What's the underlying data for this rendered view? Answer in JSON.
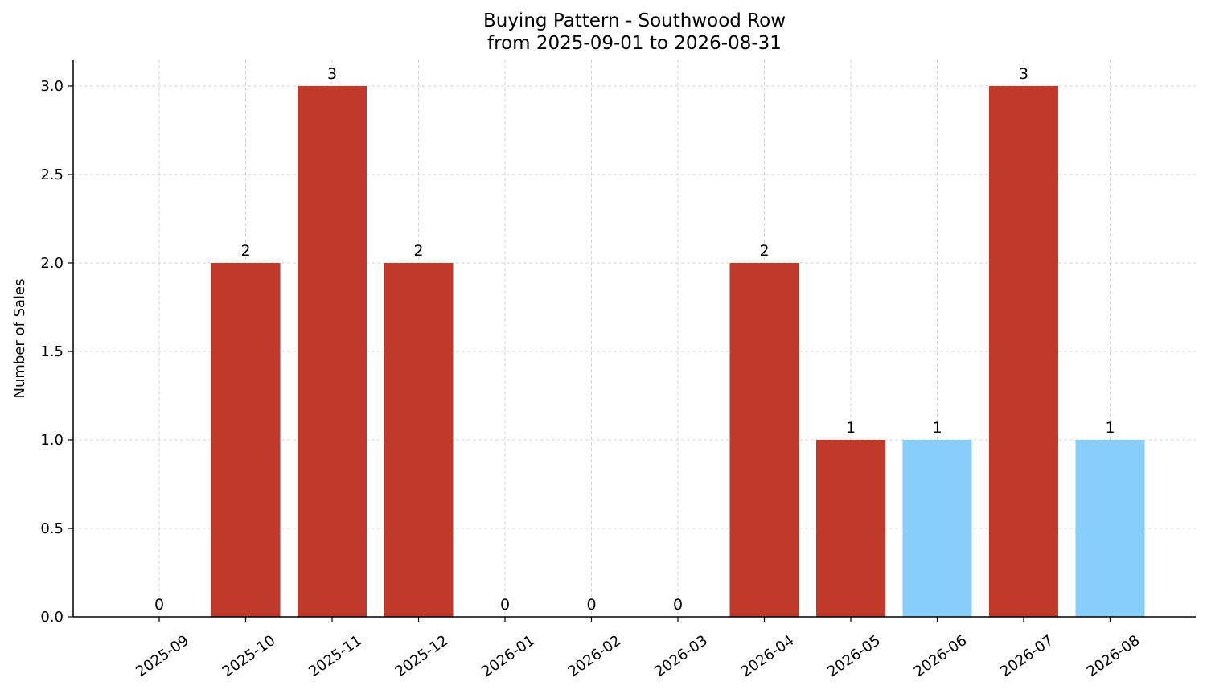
{
  "chart_data": {
    "type": "bar",
    "title": "Buying Pattern - Southwood Row",
    "subtitle": "from 2025-09-01 to 2026-08-31",
    "xlabel": "",
    "ylabel": "Number of Sales",
    "categories": [
      "2025-09",
      "2025-10",
      "2025-11",
      "2025-12",
      "2026-01",
      "2026-02",
      "2026-03",
      "2026-04",
      "2026-05",
      "2026-06",
      "2026-07",
      "2026-08"
    ],
    "values": [
      0,
      2,
      3,
      2,
      0,
      0,
      0,
      2,
      1,
      1,
      3,
      1
    ],
    "bar_colors": [
      "#c0392b",
      "#c0392b",
      "#c0392b",
      "#c0392b",
      "#c0392b",
      "#c0392b",
      "#c0392b",
      "#c0392b",
      "#c0392b",
      "#87cefa",
      "#c0392b",
      "#87cefa"
    ],
    "ylim": [
      0,
      3.15
    ],
    "yticks": [
      "0.0",
      "0.5",
      "1.0",
      "1.5",
      "2.0",
      "2.5",
      "3.0"
    ],
    "grid": true,
    "legend": "none"
  }
}
